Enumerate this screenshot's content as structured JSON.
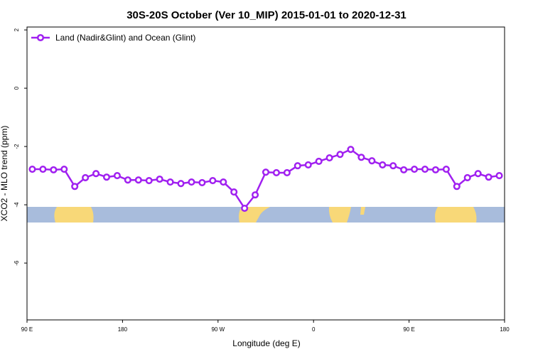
{
  "chart_data": {
    "type": "line",
    "title": "30S-20S October (Ver 10_MIP)   2015-01-01 to 2020-12-31",
    "x_label": "Longitude (deg E)",
    "y_label": "XCO2 - MLO trend (ppm)",
    "x": [
      95,
      105,
      115,
      125,
      135,
      145,
      155,
      165,
      175,
      185,
      195,
      205,
      215,
      225,
      235,
      245,
      255,
      265,
      275,
      285,
      295,
      305,
      315,
      325,
      335,
      345,
      355,
      365,
      375,
      385,
      395,
      405,
      415,
      425,
      435,
      445,
      455,
      465,
      475,
      485,
      495,
      505,
      515,
      525,
      535
    ],
    "series": [
      {
        "name": "Land (Nadir&Glint) and Ocean (Glint)",
        "color": "#a020f0",
        "values": [
          -2.78,
          -2.78,
          -2.8,
          -2.78,
          -3.37,
          -3.07,
          -2.93,
          -3.05,
          -3.0,
          -3.15,
          -3.15,
          -3.17,
          -3.12,
          -3.22,
          -3.27,
          -3.22,
          -3.24,
          -3.17,
          -3.22,
          -3.56,
          -4.12,
          -3.66,
          -2.88,
          -2.9,
          -2.9,
          -2.66,
          -2.63,
          -2.51,
          -2.39,
          -2.27,
          -2.1,
          -2.37,
          -2.49,
          -2.63,
          -2.66,
          -2.8,
          -2.78,
          -2.78,
          -2.8,
          -2.78,
          -3.37,
          -3.07,
          -2.93,
          -3.05,
          -3.0
        ]
      }
    ],
    "xlim": [
      90,
      540
    ],
    "xticks": [
      {
        "value": 90,
        "label": "90 E"
      },
      180,
      {
        "value": 270,
        "label": "90 W"
      },
      {
        "value": 360,
        "label": "0"
      },
      {
        "value": 450,
        "label": "90 E"
      },
      {
        "value": 540,
        "label": "180"
      }
    ],
    "ylim": [
      -7.95,
      2.1
    ],
    "yticks": [
      2,
      0,
      -2,
      -4,
      -6
    ],
    "legend": "top-left"
  }
}
